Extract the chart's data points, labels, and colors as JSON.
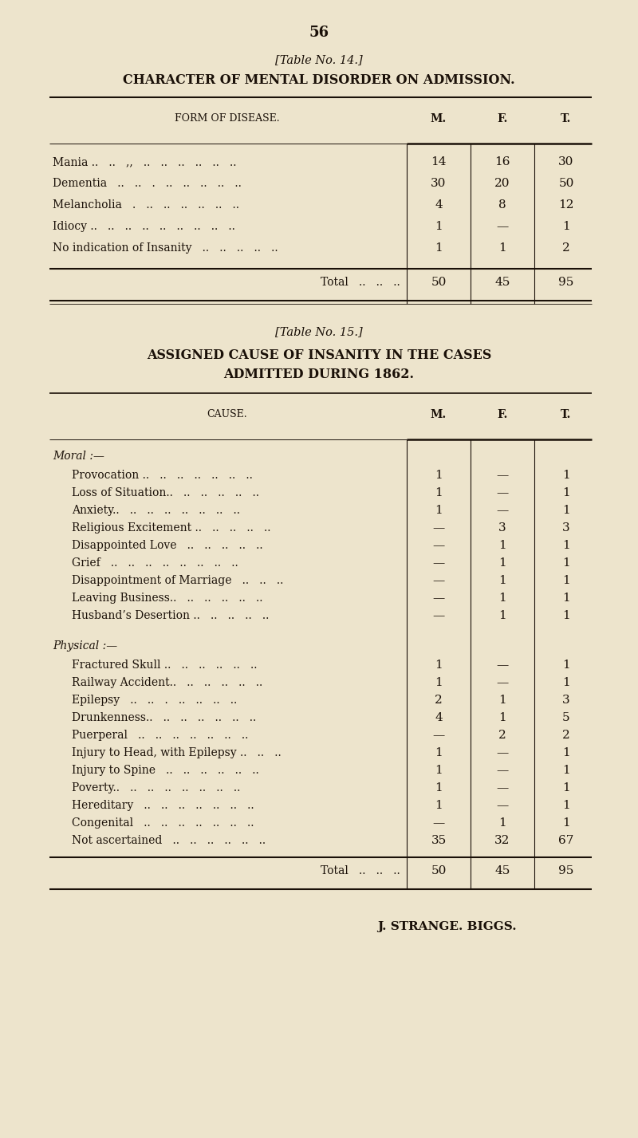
{
  "bg_color": "#ede4cc",
  "text_color": "#1a1008",
  "page_number": "56",
  "table14": {
    "title1": "[Table No. 14.]",
    "title2": "CHARACTER OF MENTAL DISORDER ON ADMISSION.",
    "rows": [
      [
        "Mania ..   ..   ,,   ..   ..   ..   ..   ..   ..",
        "14",
        "16",
        "30"
      ],
      [
        "Dementia   ..   ..   .   ..   ..   ..   ..   ..",
        "30",
        "20",
        "50"
      ],
      [
        "Melancholia   .   ..   ..   ..   ..   ..   ..",
        "4",
        "8",
        "12"
      ],
      [
        "Idiocy ..   ..   ..   ..   ..   ..   ..   ..   ..",
        "1",
        "—",
        "1"
      ],
      [
        "No indication of Insanity   ..   ..   ..   ..   ..",
        "1",
        "1",
        "2"
      ]
    ],
    "total_row": [
      "Total   ..   ..   ..",
      "50",
      "45",
      "95"
    ]
  },
  "table15": {
    "title1": "[Table No. 15.]",
    "title2": "ASSIGNED CAUSE OF INSANITY IN THE CASES",
    "title3": "ADMITTED DURING 1862.",
    "section_moral": "Moral :—",
    "moral_rows": [
      [
        "Provocation ..   ..   ..   ..   ..   ..   ..",
        "1",
        "—",
        "1"
      ],
      [
        "Loss of Situation..   ..   ..   ..   ..   ..",
        "1",
        "—",
        "1"
      ],
      [
        "Anxiety..   ..   ..   ..   ..   ..   ..   ..",
        "1",
        "—",
        "1"
      ],
      [
        "Religious Excitement ..   ..   ..   ..   ..",
        "—",
        "3",
        "3"
      ],
      [
        "Disappointed Love   ..   ..   ..   ..   ..",
        "—",
        "1",
        "1"
      ],
      [
        "Grief   ..   ..   ..   ..   ..   ..   ..   ..",
        "—",
        "1",
        "1"
      ],
      [
        "Disappointment of Marriage   ..   ..   ..",
        "—",
        "1",
        "1"
      ],
      [
        "Leaving Business..   ..   ..   ..   ..   ..",
        "—",
        "1",
        "1"
      ],
      [
        "Husband’s Desertion ..   ..   ..   ..   ..",
        "—",
        "1",
        "1"
      ]
    ],
    "section_physical": "Physical :—",
    "physical_rows": [
      [
        "Fractured Skull ..   ..   ..   ..   ..   ..",
        "1",
        "—",
        "1"
      ],
      [
        "Railway Accident..   ..   ..   ..   ..   ..",
        "1",
        "—",
        "1"
      ],
      [
        "Epilepsy   ..   ..   .   ..   ..   ..   ..",
        "2",
        "1",
        "3"
      ],
      [
        "Drunkenness..   ..   ..   ..   ..   ..   ..",
        "4",
        "1",
        "5"
      ],
      [
        "Puerperal   ..   ..   ..   ..   ..   ..   ..",
        "—",
        "2",
        "2"
      ],
      [
        "Injury to Head, with Epilepsy ..   ..   ..",
        "1",
        "—",
        "1"
      ],
      [
        "Injury to Spine   ..   ..   ..   ..   ..   ..",
        "1",
        "—",
        "1"
      ],
      [
        "Poverty..   ..   ..   ..   ..   ..   ..   ..",
        "1",
        "—",
        "1"
      ],
      [
        "Hereditary   ..   ..   ..   ..   ..   ..   ..",
        "1",
        "—",
        "1"
      ],
      [
        "Congenital   ..   ..   ..   ..   ..   ..   ..",
        "—",
        "1",
        "1"
      ],
      [
        "Not ascertained   ..   ..   ..   ..   ..   ..",
        "35",
        "32",
        "67"
      ]
    ],
    "total_row": [
      "Total   ..   ..   ..",
      "50",
      "45",
      "95"
    ]
  },
  "footer": "J. STRANGE. BIGGS."
}
